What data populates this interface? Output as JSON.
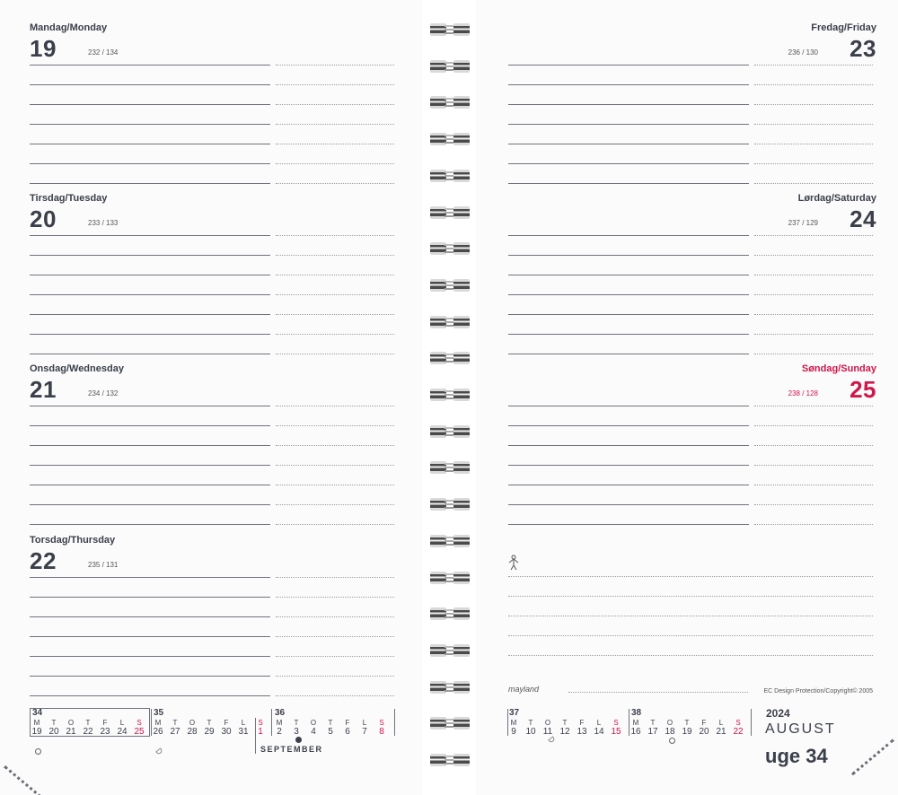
{
  "left_page": {
    "days": [
      {
        "name": "Mandag/Monday",
        "number": "19",
        "count": "232 / 134"
      },
      {
        "name": "Tirsdag/Tuesday",
        "number": "20",
        "count": "233 / 133"
      },
      {
        "name": "Onsdag/Wednesday",
        "number": "21",
        "count": "234 / 132"
      },
      {
        "name": "Torsdag/Thursday",
        "number": "22",
        "count": "235 / 131"
      }
    ]
  },
  "right_page": {
    "days": [
      {
        "name": "Fredag/Friday",
        "number": "23",
        "count": "236 / 130"
      },
      {
        "name": "Lørdag/Saturday",
        "number": "24",
        "count": "237 / 129"
      },
      {
        "name": "Søndag/Sunday",
        "number": "25",
        "count": "238 / 128"
      }
    ],
    "brand": "mayland",
    "copyright": "EC Design Protection/Copyright© 2005",
    "year": "2024",
    "month": "AUGUST",
    "week": "uge 34"
  },
  "mini_calendar": {
    "day_letters": [
      "M",
      "T",
      "O",
      "T",
      "F",
      "L",
      "S"
    ],
    "next_month_label": "SEPTEMBER",
    "weeks": [
      {
        "week": "34",
        "days": [
          "19",
          "20",
          "21",
          "22",
          "23",
          "24",
          "25"
        ]
      },
      {
        "week": "35",
        "days": [
          "26",
          "27",
          "28",
          "29",
          "30",
          "31",
          "1"
        ]
      },
      {
        "week": "36",
        "days": [
          "2",
          "3",
          "4",
          "5",
          "6",
          "7",
          "8"
        ]
      },
      {
        "week": "37",
        "days": [
          "9",
          "10",
          "11",
          "12",
          "13",
          "14",
          "15"
        ]
      },
      {
        "week": "38",
        "days": [
          "16",
          "17",
          "18",
          "19",
          "20",
          "21",
          "22"
        ]
      }
    ]
  },
  "colors": {
    "text": "#3a3f4a",
    "sunday_red": "#d0164a",
    "line": "#6f737b"
  }
}
